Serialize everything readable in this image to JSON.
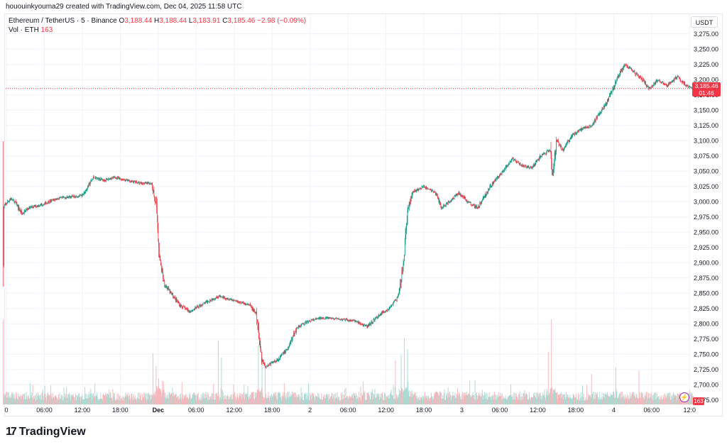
{
  "header": {
    "credit": "hououinkyouma29 created with TradingView.com, Dec 04, 2025 11:58 UTC"
  },
  "legend": {
    "symbol": "Ethereum / TetherUS · 5 · Binance",
    "o_label": "O",
    "o_value": "3,188.44",
    "h_label": "H",
    "h_value": "3,188.44",
    "l_label": "L",
    "l_value": "3,183.91",
    "c_label": "C",
    "c_value": "3,185.46",
    "change": "−2.98 (−0.09%)",
    "vol_label": "Vol · ETH",
    "vol_value": "163"
  },
  "currency": "USDT",
  "price_tag": {
    "price": "3,185.46",
    "countdown": "01:46"
  },
  "volume_tag": "163",
  "brand": {
    "logo": "17",
    "name": "TradingView"
  },
  "colors": {
    "up": "#089981",
    "down": "#f23645",
    "up_volume": "#a8d9d1",
    "down_volume": "#f7b4b9",
    "grid": "#f0f3fa"
  },
  "chart_data": {
    "type": "candlestick",
    "symbol": "ETH/USDT",
    "interval": "5",
    "ylim": [
      2675,
      3280
    ],
    "y_ticks": [
      "3,275.00",
      "3,250.00",
      "3,225.00",
      "3,200.00",
      "3,175.00",
      "3,150.00",
      "3,125.00",
      "3,100.00",
      "3,075.00",
      "3,050.00",
      "3,025.00",
      "3,000.00",
      "2,975.00",
      "2,950.00",
      "2,925.00",
      "2,900.00",
      "2,875.00",
      "2,850.00",
      "2,825.00",
      "2,800.00",
      "2,775.00",
      "2,750.00",
      "2,725.00",
      "2,700.00",
      "2,675.00"
    ],
    "x_ticks": [
      {
        "label": "0",
        "hours": 0,
        "bold": false
      },
      {
        "label": "06:00",
        "hours": 6,
        "bold": false
      },
      {
        "label": "12:00",
        "hours": 12,
        "bold": false
      },
      {
        "label": "18:00",
        "hours": 18,
        "bold": false
      },
      {
        "label": "Dec",
        "hours": 24,
        "bold": true
      },
      {
        "label": "06:00",
        "hours": 30,
        "bold": false
      },
      {
        "label": "12:00",
        "hours": 36,
        "bold": false
      },
      {
        "label": "18:00",
        "hours": 42,
        "bold": false
      },
      {
        "label": "2",
        "hours": 48,
        "bold": false
      },
      {
        "label": "06:00",
        "hours": 54,
        "bold": false
      },
      {
        "label": "12:00",
        "hours": 60,
        "bold": false
      },
      {
        "label": "18:00",
        "hours": 66,
        "bold": false
      },
      {
        "label": "3",
        "hours": 72,
        "bold": false
      },
      {
        "label": "06:00",
        "hours": 78,
        "bold": false
      },
      {
        "label": "12:00",
        "hours": 84,
        "bold": false
      },
      {
        "label": "18:00",
        "hours": 90,
        "bold": false
      },
      {
        "label": "4",
        "hours": 96,
        "bold": false
      },
      {
        "label": "06:00",
        "hours": 102,
        "bold": false
      },
      {
        "label": "12:0",
        "hours": 108,
        "bold": false
      }
    ],
    "last_price": 3185.46,
    "price_path": [
      [
        -0.5,
        2990
      ],
      [
        0.6,
        3005
      ],
      [
        1.3,
        3000
      ],
      [
        2.5,
        2980
      ],
      [
        3.5,
        2990
      ],
      [
        5.5,
        2995
      ],
      [
        8,
        3005
      ],
      [
        10,
        3008
      ],
      [
        12,
        3010
      ],
      [
        13.8,
        3040
      ],
      [
        15.5,
        3035
      ],
      [
        17,
        3040
      ],
      [
        19,
        3035
      ],
      [
        21.5,
        3030
      ],
      [
        23,
        3030
      ],
      [
        23.7,
        2990
      ],
      [
        24.3,
        2900
      ],
      [
        25,
        2865
      ],
      [
        26,
        2850
      ],
      [
        27.5,
        2830
      ],
      [
        29,
        2820
      ],
      [
        31.5,
        2835
      ],
      [
        33.5,
        2845
      ],
      [
        35.5,
        2840
      ],
      [
        37,
        2835
      ],
      [
        38.5,
        2830
      ],
      [
        39.5,
        2815
      ],
      [
        40.4,
        2740
      ],
      [
        41,
        2730
      ],
      [
        43,
        2742
      ],
      [
        44.5,
        2760
      ],
      [
        46,
        2795
      ],
      [
        48,
        2805
      ],
      [
        50,
        2810
      ],
      [
        53,
        2807
      ],
      [
        55,
        2805
      ],
      [
        57,
        2795
      ],
      [
        59,
        2815
      ],
      [
        60.5,
        2825
      ],
      [
        62,
        2845
      ],
      [
        62.8,
        2900
      ],
      [
        63.4,
        2985
      ],
      [
        64.2,
        3015
      ],
      [
        66,
        3025
      ],
      [
        67.8,
        3015
      ],
      [
        68.8,
        2990
      ],
      [
        70,
        3000
      ],
      [
        71.5,
        3015
      ],
      [
        73,
        3000
      ],
      [
        74.5,
        2990
      ],
      [
        76.5,
        3025
      ],
      [
        78.5,
        3050
      ],
      [
        80,
        3070
      ],
      [
        81.5,
        3060
      ],
      [
        83,
        3055
      ],
      [
        84.5,
        3075
      ],
      [
        86,
        3085
      ],
      [
        86.3,
        3045
      ],
      [
        87,
        3100
      ],
      [
        88,
        3085
      ],
      [
        89.5,
        3110
      ],
      [
        91,
        3120
      ],
      [
        92.5,
        3125
      ],
      [
        93.5,
        3140
      ],
      [
        95,
        3165
      ],
      [
        96.5,
        3200
      ],
      [
        97.8,
        3225
      ],
      [
        99,
        3215
      ],
      [
        100.5,
        3200
      ],
      [
        101.7,
        3185
      ],
      [
        103,
        3200
      ],
      [
        104.5,
        3190
      ],
      [
        106,
        3205
      ],
      [
        107.5,
        3190
      ],
      [
        108.8,
        3185.46
      ]
    ],
    "volume_spikes": [
      {
        "hours": 23.2,
        "value": 60
      },
      {
        "hours": 23.7,
        "value": 45
      },
      {
        "hours": 33.5,
        "value": 75
      },
      {
        "hours": 34,
        "value": 55
      },
      {
        "hours": 39.8,
        "value": 70
      },
      {
        "hours": 40.4,
        "value": 65
      },
      {
        "hours": 40.9,
        "value": 50
      },
      {
        "hours": 61.5,
        "value": 52
      },
      {
        "hours": 62.4,
        "value": 58
      },
      {
        "hours": 62.9,
        "value": 78
      },
      {
        "hours": 63.4,
        "value": 65
      },
      {
        "hours": 86.2,
        "value": 100
      },
      {
        "hours": 85.7,
        "value": 62
      },
      {
        "hours": 92.5,
        "value": 36
      },
      {
        "hours": 96.3,
        "value": 44
      },
      {
        "hours": 100,
        "value": 40
      }
    ],
    "volume_max": 100
  }
}
